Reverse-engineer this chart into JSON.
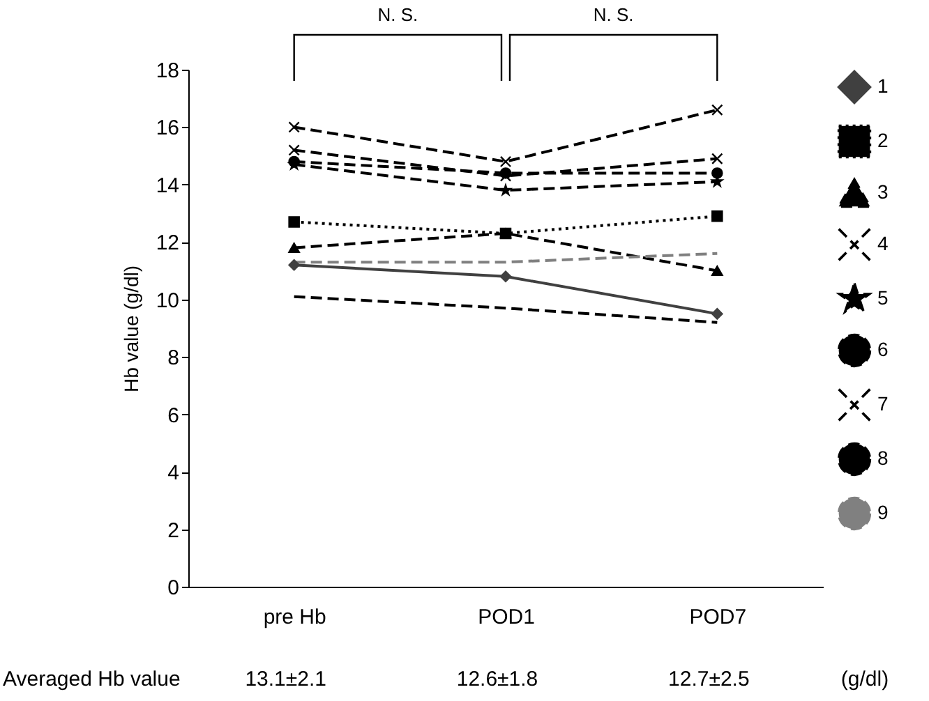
{
  "chart_data": {
    "type": "line",
    "ylabel": "Hb value (g/dl)",
    "categories": [
      "pre Hb",
      "POD1",
      "POD7"
    ],
    "ylim": [
      0,
      18
    ],
    "yticks": [
      0,
      2,
      4,
      6,
      8,
      10,
      12,
      14,
      16,
      18
    ],
    "grid": false,
    "legend": "right",
    "annotations": [
      "N. S.",
      "N. S.",
      "Averaged Hb value",
      "13.1±2.1",
      "12.6±1.8",
      "12.7±2.5",
      "(g/dl)"
    ],
    "series": [
      {
        "name": "1",
        "color": "#404040",
        "values": [
          11.2,
          10.8,
          9.5
        ],
        "marker": "diamond",
        "line_style": "solid"
      },
      {
        "name": "2",
        "color": "#000000",
        "values": [
          12.7,
          12.3,
          12.9
        ],
        "marker": "square",
        "line_style": "dotted"
      },
      {
        "name": "3",
        "color": "#000000",
        "values": [
          11.8,
          12.3,
          11.0
        ],
        "marker": "triangle",
        "line_style": "dashed"
      },
      {
        "name": "4",
        "color": "#000000",
        "values": [
          15.2,
          14.3,
          14.9
        ],
        "marker": "cross",
        "line_style": "dashed"
      },
      {
        "name": "5",
        "color": "#000000",
        "values": [
          14.7,
          13.8,
          14.1
        ],
        "marker": "star",
        "line_style": "dashed"
      },
      {
        "name": "6",
        "color": "#000000",
        "values": [
          14.8,
          14.4,
          14.4
        ],
        "marker": "circle",
        "line_style": "dashed"
      },
      {
        "name": "7",
        "color": "#000000",
        "values": [
          16.0,
          14.8,
          16.6
        ],
        "marker": "cross",
        "line_style": "dashed"
      },
      {
        "name": "8",
        "color": "#000000",
        "values": [
          10.1,
          9.7,
          9.2
        ],
        "marker": "none",
        "line_style": "dashed"
      },
      {
        "name": "9",
        "color": "#808080",
        "values": [
          11.3,
          11.3,
          11.6
        ],
        "marker": "none",
        "line_style": "dashed"
      }
    ]
  }
}
